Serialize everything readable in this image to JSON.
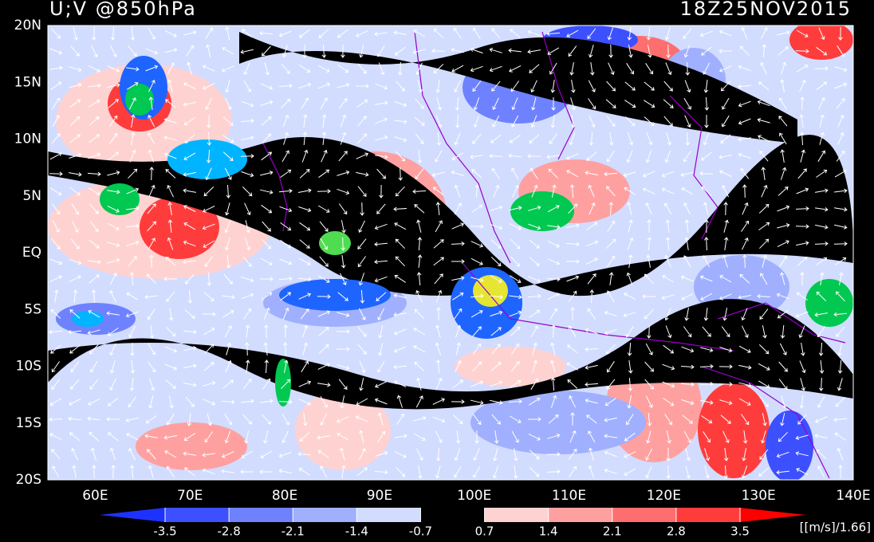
{
  "header": {
    "title": "U;V @850hPa",
    "time": "18Z25NOV2015"
  },
  "axes": {
    "latitude_labels": [
      "20N",
      "15N",
      "10N",
      "5N",
      "EQ",
      "5S",
      "10S",
      "15S",
      "20S"
    ],
    "longitude_labels": [
      "60E",
      "70E",
      "80E",
      "90E",
      "100E",
      "110E",
      "120E",
      "130E",
      "140E"
    ]
  },
  "colorbar": {
    "levels": [
      -3.5,
      -2.8,
      -2.1,
      -1.4,
      -0.7,
      0.7,
      1.4,
      2.1,
      2.8,
      3.5
    ],
    "colors": [
      "#1e32ff",
      "#3c50ff",
      "#6e82ff",
      "#a0b0ff",
      "#d2dcff",
      "#000000",
      "#ffd2d2",
      "#ffa0a0",
      "#ff6e6e",
      "#ff3c3c",
      "#ff0000"
    ],
    "units": "[[m/s]/1.66]"
  }
}
